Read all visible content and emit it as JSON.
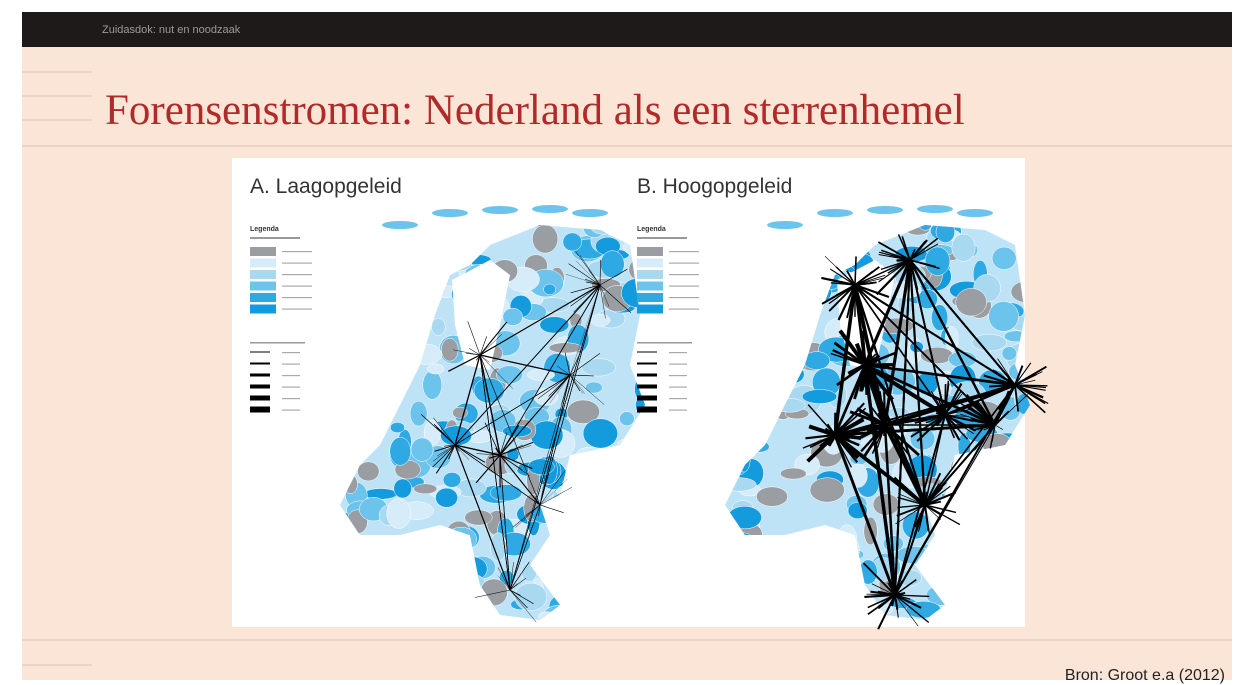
{
  "header": {
    "text": "Zuidasdok: nut en noodzaak"
  },
  "title": "Forensenstromen: Nederland als een sterrenhemel",
  "maps": [
    {
      "title": "A. Laagopgeleid",
      "legend": "Legenda"
    },
    {
      "title": "B. Hoogopgeleid",
      "legend": "Legenda"
    }
  ],
  "source": "Bron: Groot e.a (2012)"
}
